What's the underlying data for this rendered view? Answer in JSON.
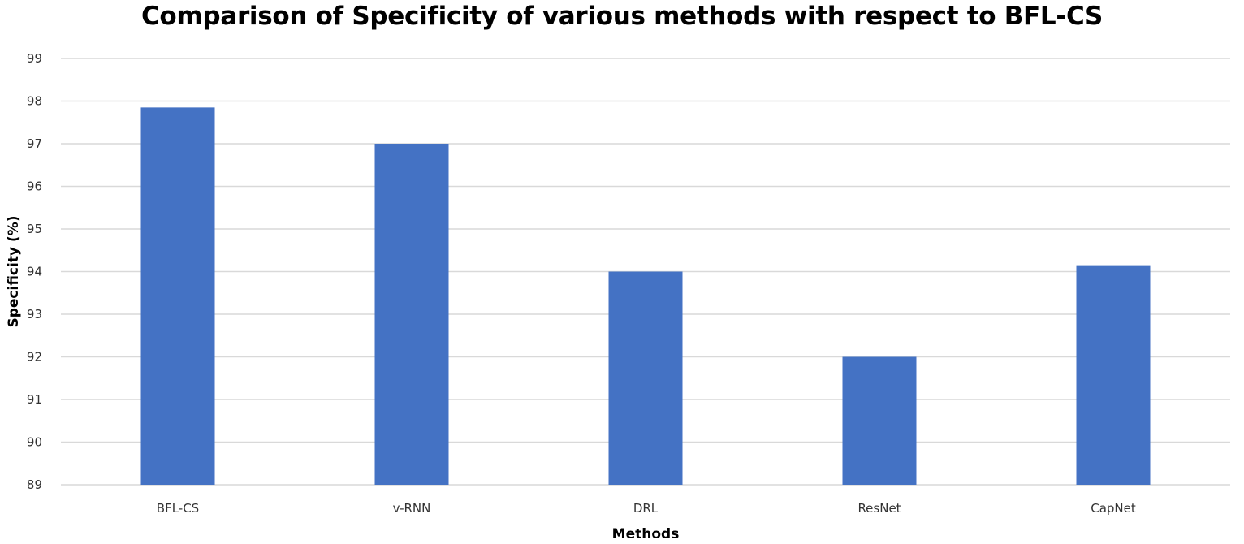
{
  "chart_data": {
    "type": "bar",
    "title": "Comparison of Specificity of various methods with respect to BFL-CS",
    "xlabel": "Methods",
    "ylabel": "Specificity  (%)",
    "categories": [
      "BFL-CS",
      "v-RNN",
      "DRL",
      "ResNet",
      "CapNet"
    ],
    "values": [
      97.85,
      97.0,
      94.0,
      92.0,
      94.15
    ],
    "ylim": [
      89,
      99
    ],
    "yticks": [
      "89",
      "90",
      "91",
      "92",
      "93",
      "94",
      "95",
      "96",
      "97",
      "98",
      "99"
    ],
    "grid": true,
    "legend": "none",
    "bar_color": "#4472C4",
    "grid_color": "#D9D9D9"
  }
}
